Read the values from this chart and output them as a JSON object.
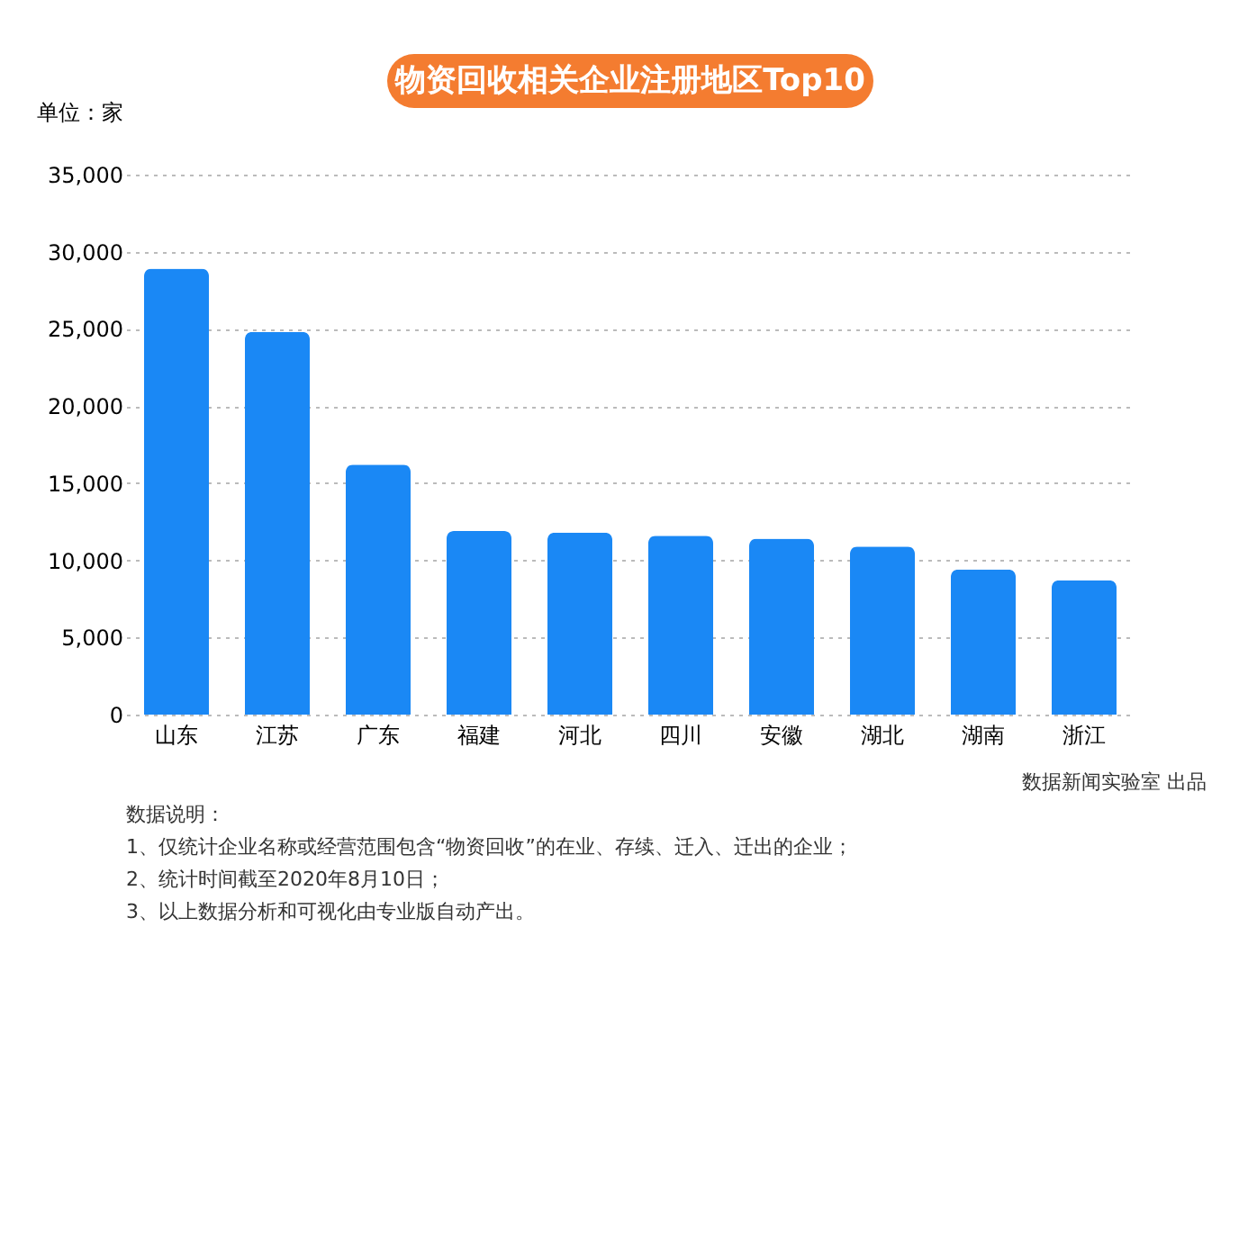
{
  "chart_data": {
    "type": "bar",
    "title": "物资回收相关企业注册地区Top10",
    "ylabel": "单位：家",
    "categories": [
      "山东",
      "江苏",
      "广东",
      "福建",
      "河北",
      "四川",
      "安徽",
      "湖北",
      "湖南",
      "浙江"
    ],
    "values": [
      28900,
      24800,
      16200,
      11900,
      11800,
      11600,
      11400,
      10900,
      9400,
      8700
    ],
    "color": "#1a88f5",
    "ylim": [
      0,
      35000
    ],
    "yticks": [
      {
        "value": 0,
        "label": "0"
      },
      {
        "value": 5000,
        "label": "5,000"
      },
      {
        "value": 10000,
        "label": "10,000"
      },
      {
        "value": 15000,
        "label": "15,000"
      },
      {
        "value": 20000,
        "label": "20,000"
      },
      {
        "value": 25000,
        "label": "25,000"
      },
      {
        "value": 30000,
        "label": "30,000"
      },
      {
        "value": 35000,
        "label": "35,000"
      }
    ],
    "grid": "y",
    "annotations": [
      "数据新闻实验室 出品",
      "数据说明：",
      "1、仅统计企业名称或经营范围包含“物资回收”的在业、存续、迁入、迁出的企业；",
      "2、统计时间截至2020年8月10日；",
      "3、以上数据分析和可视化由专业版自动产出。"
    ]
  }
}
